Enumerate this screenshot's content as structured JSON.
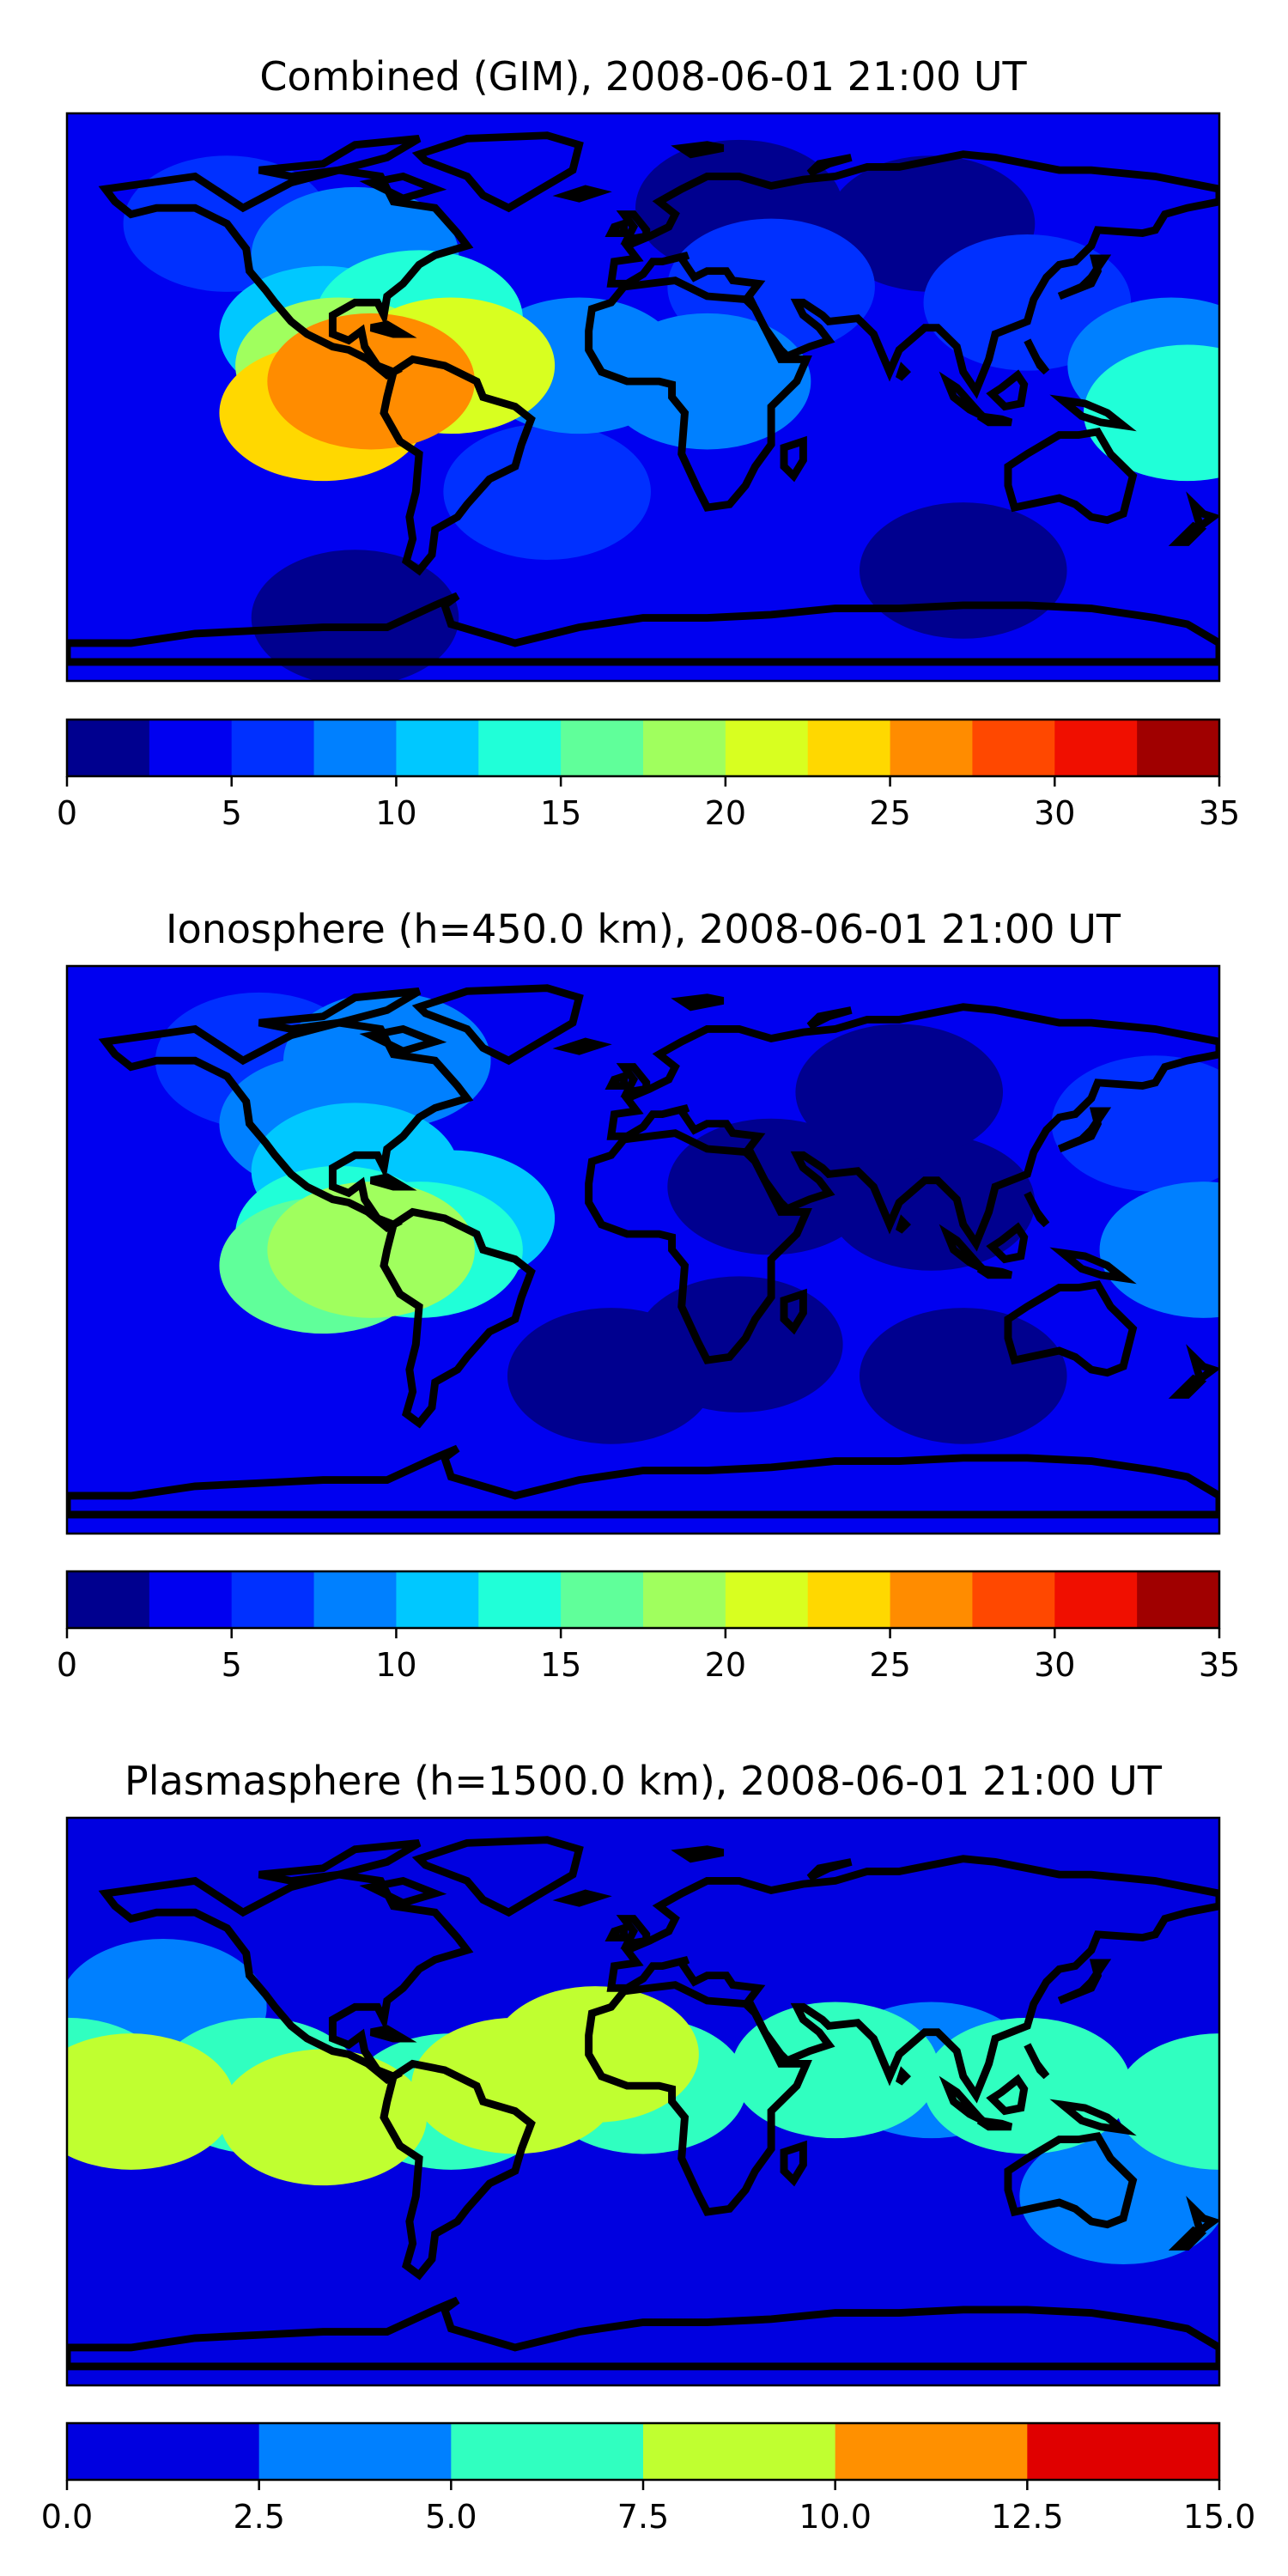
{
  "panels": [
    {
      "id": "combined",
      "title": "Combined (GIM), 2008-06-01 21:00 UT",
      "colorbar": {
        "min": 0,
        "max": 35,
        "step": 2.5,
        "ticks": [
          "0",
          "5",
          "10",
          "15",
          "20",
          "25",
          "30",
          "35"
        ],
        "colors": [
          "#00008f",
          "#0000f0",
          "#0030ff",
          "#0080ff",
          "#00c8ff",
          "#20ffd8",
          "#60ff9a",
          "#a0ff5e",
          "#d8ff20",
          "#ffd800",
          "#ff8c00",
          "#ff4800",
          "#f00f00",
          "#a00000"
        ]
      },
      "field": {
        "background_level": 1,
        "blobs": [
          {
            "lon": 30,
            "lat": 60,
            "level": 0
          },
          {
            "lon": 90,
            "lat": 55,
            "level": 0
          },
          {
            "lon": 100,
            "lat": -55,
            "level": 0
          },
          {
            "lon": -90,
            "lat": -70,
            "level": 0
          },
          {
            "lon": 120,
            "lat": 30,
            "level": 2
          },
          {
            "lon": 165,
            "lat": 10,
            "level": 3
          },
          {
            "lon": 170,
            "lat": -5,
            "level": 5
          },
          {
            "lon": -130,
            "lat": 55,
            "level": 2
          },
          {
            "lon": -90,
            "lat": 45,
            "level": 3
          },
          {
            "lon": -100,
            "lat": 20,
            "level": 4
          },
          {
            "lon": -70,
            "lat": 25,
            "level": 5
          },
          {
            "lon": -95,
            "lat": 10,
            "level": 7
          },
          {
            "lon": -60,
            "lat": 10,
            "level": 8
          },
          {
            "lon": -100,
            "lat": -5,
            "level": 9
          },
          {
            "lon": -85,
            "lat": 5,
            "level": 10
          },
          {
            "lon": -20,
            "lat": 10,
            "level": 3
          },
          {
            "lon": 20,
            "lat": 5,
            "level": 3
          },
          {
            "lon": 40,
            "lat": 35,
            "level": 2
          },
          {
            "lon": -30,
            "lat": -30,
            "level": 2
          }
        ]
      }
    },
    {
      "id": "ionosphere",
      "title": "Ionosphere  (h=450.0 km), 2008-06-01 21:00 UT",
      "colorbar": {
        "min": 0,
        "max": 35,
        "step": 2.5,
        "ticks": [
          "0",
          "5",
          "10",
          "15",
          "20",
          "25",
          "30",
          "35"
        ],
        "colors": [
          "#00008f",
          "#0000f0",
          "#0030ff",
          "#0080ff",
          "#00c8ff",
          "#20ffd8",
          "#60ff9a",
          "#a0ff5e",
          "#d8ff20",
          "#ffd800",
          "#ff8c00",
          "#ff4800",
          "#f00f00",
          "#a00000"
        ]
      },
      "field": {
        "background_level": 1,
        "blobs": [
          {
            "lon": 40,
            "lat": 20,
            "level": 0
          },
          {
            "lon": 90,
            "lat": 15,
            "level": 0
          },
          {
            "lon": 30,
            "lat": -30,
            "level": 0
          },
          {
            "lon": 100,
            "lat": -40,
            "level": 0
          },
          {
            "lon": -10,
            "lat": -40,
            "level": 0
          },
          {
            "lon": 80,
            "lat": 50,
            "level": 0
          },
          {
            "lon": -120,
            "lat": 60,
            "level": 2
          },
          {
            "lon": -80,
            "lat": 60,
            "level": 3
          },
          {
            "lon": -100,
            "lat": 40,
            "level": 3
          },
          {
            "lon": -90,
            "lat": 25,
            "level": 4
          },
          {
            "lon": -60,
            "lat": 10,
            "level": 4
          },
          {
            "lon": -95,
            "lat": 5,
            "level": 5
          },
          {
            "lon": -70,
            "lat": 0,
            "level": 5
          },
          {
            "lon": -100,
            "lat": -5,
            "level": 6
          },
          {
            "lon": -85,
            "lat": 0,
            "level": 7
          },
          {
            "lon": 175,
            "lat": 0,
            "level": 3
          },
          {
            "lon": 160,
            "lat": 40,
            "level": 2
          }
        ]
      }
    },
    {
      "id": "plasmasphere",
      "title": "Plasmasphere (h=1500.0 km), 2008-06-01 21:00 UT",
      "colorbar": {
        "min": 0,
        "max": 15,
        "step": 2.5,
        "ticks": [
          "0.0",
          "2.5",
          "5.0",
          "7.5",
          "10.0",
          "12.5",
          "15.0"
        ],
        "colors": [
          "#0000e0",
          "#0080ff",
          "#30ffc0",
          "#c0ff30",
          "#ff9000",
          "#e00000"
        ]
      },
      "field": {
        "background_level": 0,
        "blobs": [
          {
            "lon": -180,
            "lat": 5,
            "level": 2
          },
          {
            "lon": -120,
            "lat": 5,
            "level": 2
          },
          {
            "lon": -60,
            "lat": 0,
            "level": 2
          },
          {
            "lon": 0,
            "lat": 5,
            "level": 2
          },
          {
            "lon": 60,
            "lat": 10,
            "level": 2
          },
          {
            "lon": 120,
            "lat": 5,
            "level": 2
          },
          {
            "lon": 180,
            "lat": 0,
            "level": 2
          },
          {
            "lon": -150,
            "lat": 30,
            "level": 1
          },
          {
            "lon": 150,
            "lat": -30,
            "level": 1
          },
          {
            "lon": -160,
            "lat": 0,
            "level": 3
          },
          {
            "lon": -100,
            "lat": -5,
            "level": 3
          },
          {
            "lon": -40,
            "lat": 5,
            "level": 3
          },
          {
            "lon": -15,
            "lat": 15,
            "level": 3
          },
          {
            "lon": 90,
            "lat": 10,
            "level": 1
          }
        ]
      }
    }
  ],
  "colors": {
    "coastline": "#000000",
    "frame": "#000000"
  }
}
